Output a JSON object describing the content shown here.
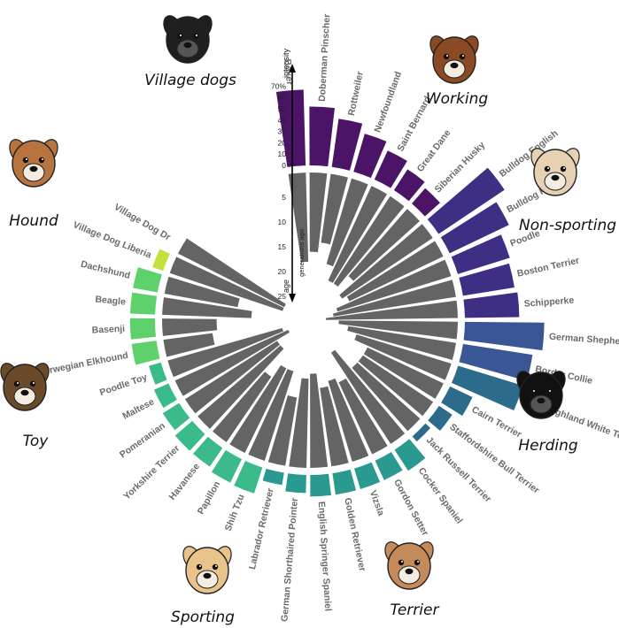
{
  "chart_data": {
    "type": "radial-bar",
    "axis": {
      "intensity_label": "intensity",
      "intensity_ticks": [
        "70%",
        "60",
        "50",
        "40",
        "30",
        "20",
        "10",
        "0"
      ],
      "age_label": "age",
      "age_sublabel": "generations ago",
      "age_ticks": [
        "5",
        "10",
        "15",
        "20",
        "25"
      ]
    },
    "groups": [
      {
        "name": "Working",
        "color": "#4b1466",
        "icon": "boxer-dog-icon",
        "breeds": [
          {
            "name": "Boxer",
            "intensity": 67,
            "age": 18
          },
          {
            "name": "Doberman Pinscher",
            "intensity": 52,
            "age": 16
          },
          {
            "name": "Rottweiler",
            "intensity": 43,
            "age": 14
          },
          {
            "name": "Newfoundland",
            "intensity": 35,
            "age": 18
          },
          {
            "name": "Saint Bernard",
            "intensity": 28,
            "age": 21
          },
          {
            "name": "Great Dane",
            "intensity": 22,
            "age": 21
          },
          {
            "name": "Siberian Husky",
            "intensity": 18,
            "age": 18
          }
        ]
      },
      {
        "name": "Non-sporting",
        "color": "#3f2f84",
        "icon": "pug-dog-icon",
        "breeds": [
          {
            "name": "Bulldog English",
            "intensity": 70,
            "age": 22
          },
          {
            "name": "Bulldog French",
            "intensity": 58,
            "age": 21
          },
          {
            "name": "Poodle",
            "intensity": 48,
            "age": 24
          },
          {
            "name": "Boston Terrier",
            "intensity": 46,
            "age": 25
          },
          {
            "name": "Schipperke",
            "intensity": 48,
            "age": 28
          }
        ]
      },
      {
        "name": "Herding",
        "color": "#3a5694",
        "icon": "border-collie-icon",
        "breeds": [
          {
            "name": "German Shepherd Dog",
            "intensity": 70,
            "age": 24
          },
          {
            "name": "Border Collie",
            "intensity": 62,
            "age": 22
          }
        ]
      },
      {
        "name": "Terrier",
        "color": "#2d6b8c",
        "icon": "jack-russell-icon",
        "breeds": [
          {
            "name": "West Highland White Terrier",
            "intensity": 60,
            "age": 20
          },
          {
            "name": "Cairn Terrier",
            "intensity": 22,
            "age": 17
          },
          {
            "name": "Staffordshire Bull Terrier",
            "intensity": 14,
            "age": 17
          },
          {
            "name": "Jack Russell Terrier",
            "intensity": 6,
            "age": 17
          }
        ]
      },
      {
        "name": "Sporting",
        "color": "#2a9a90",
        "icon": "labrador-dog-icon",
        "breeds": [
          {
            "name": "Cocker Spaniel",
            "intensity": 22,
            "age": 22
          },
          {
            "name": "Gordon Setter",
            "intensity": 19,
            "age": 16
          },
          {
            "name": "Vizsla",
            "intensity": 19,
            "age": 17
          },
          {
            "name": "Golden Retriever",
            "intensity": 19,
            "age": 16
          },
          {
            "name": "English Springer Spaniel",
            "intensity": 19,
            "age": 19
          },
          {
            "name": "German Shorthaired Pointer",
            "intensity": 16,
            "age": 18
          },
          {
            "name": "Labrador Retriever",
            "intensity": 11,
            "age": 14
          }
        ]
      },
      {
        "name": "Toy",
        "color": "#3bba8a",
        "icon": "yorkshire-dog-icon",
        "breeds": [
          {
            "name": "Shih Tzu",
            "intensity": 24,
            "age": 19
          },
          {
            "name": "Papillon",
            "intensity": 23,
            "age": 19
          },
          {
            "name": "Havanese",
            "intensity": 20,
            "age": 16
          },
          {
            "name": "Yorkshire Terrier",
            "intensity": 20,
            "age": 22
          },
          {
            "name": "Pomeranian",
            "intensity": 17,
            "age": 22
          },
          {
            "name": "Maltese",
            "intensity": 14,
            "age": 25
          },
          {
            "name": "Poodle Toy",
            "intensity": 11,
            "age": 24
          }
        ]
      },
      {
        "name": "Hound",
        "color": "#5ed06c",
        "icon": "hound-dog-icon",
        "breeds": [
          {
            "name": "Norwegian Elkhound",
            "intensity": 22,
            "age": 10
          },
          {
            "name": "Basenji",
            "intensity": 22,
            "age": 11
          },
          {
            "name": "Beagle",
            "intensity": 22,
            "age": 18
          },
          {
            "name": "Dachshund",
            "intensity": 22,
            "age": 15
          }
        ]
      },
      {
        "name": "Village dogs",
        "color": "#c4e23e",
        "icon": "village-dog-icon",
        "breeds": [
          {
            "name": "Village Dog Liberia",
            "intensity": 10,
            "age": 24
          },
          {
            "name": "Village Dog Dr",
            "intensity": 0,
            "age": 24
          }
        ]
      }
    ]
  }
}
